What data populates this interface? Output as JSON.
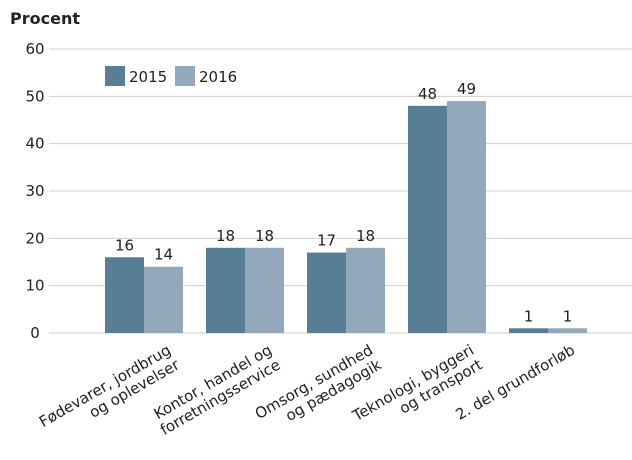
{
  "chart_data": {
    "type": "bar",
    "title": "Procent",
    "categories": [
      [
        "Fødevarer, jordbrug",
        "og oplevelser"
      ],
      [
        "Kontor, handel og",
        "forretningsservice"
      ],
      [
        "Omsorg, sundhed",
        "og pædagogik"
      ],
      [
        "Teknologi, byggeri",
        "og transport"
      ],
      [
        "2. del grundforløb"
      ]
    ],
    "series": [
      {
        "name": "2015",
        "color": "#567f96",
        "values": [
          16,
          18,
          17,
          48,
          1
        ]
      },
      {
        "name": "2016",
        "color": "#93a9bb",
        "values": [
          14,
          18,
          18,
          49,
          1
        ]
      }
    ],
    "ylim": [
      0,
      60
    ],
    "yticks": [
      0,
      10,
      20,
      30,
      40,
      50,
      60
    ],
    "grid": true,
    "legend": "top-left"
  }
}
